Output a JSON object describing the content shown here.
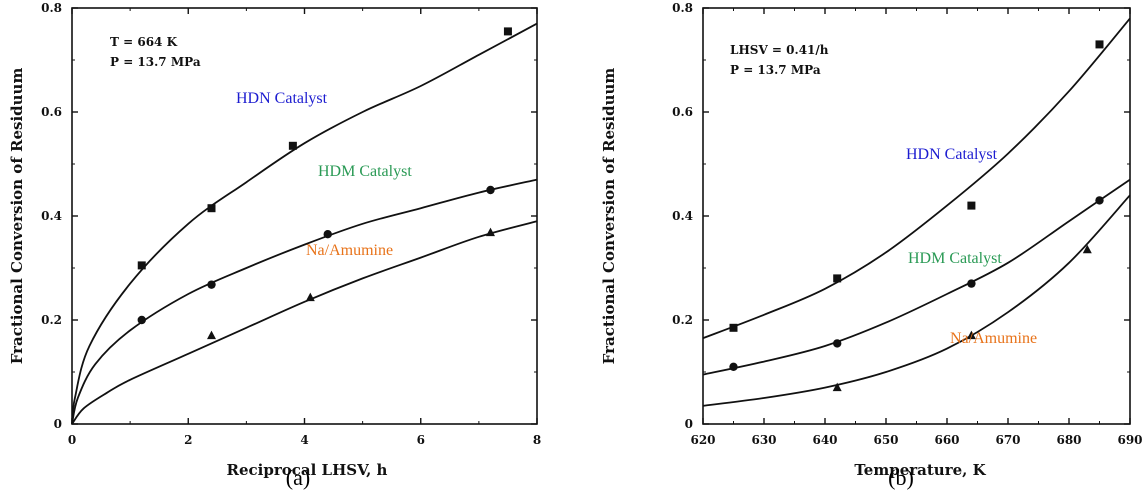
{
  "chart_data": [
    {
      "type": "scatter",
      "panel_label": "(a)",
      "xlabel": "Reciprocal LHSV, h",
      "ylabel": "Fractional Conversion of Residuum",
      "xlim": [
        0,
        8
      ],
      "ylim": [
        0,
        0.8
      ],
      "xticks": [
        0,
        2,
        4,
        6,
        8
      ],
      "yticks": [
        0,
        0.2,
        0.4,
        0.6,
        0.8
      ],
      "xtick_labels": [
        "0",
        "2",
        "4",
        "6",
        "8"
      ],
      "ytick_labels": [
        "0",
        "0.2",
        "0.4",
        "0.6",
        "0.8"
      ],
      "conditions": [
        "T = 664 K",
        "P = 13.7 MPa"
      ],
      "grid": false,
      "series": [
        {
          "name": "HDN Catalyst",
          "color": "#1c1cd0",
          "marker": "square",
          "x": [
            1.2,
            2.4,
            3.8,
            7.5
          ],
          "y": [
            0.305,
            0.415,
            0.535,
            0.755
          ],
          "curve_x": [
            0,
            0.05,
            0.3,
            1,
            2,
            3,
            4,
            5,
            6,
            7,
            8
          ],
          "curve_y": [
            0,
            0.05,
            0.15,
            0.27,
            0.385,
            0.465,
            0.54,
            0.6,
            0.65,
            0.71,
            0.77
          ]
        },
        {
          "name": "HDM Catalyst",
          "color": "#2a9a55",
          "marker": "circle",
          "x": [
            1.2,
            2.4,
            4.4,
            7.2
          ],
          "y": [
            0.2,
            0.268,
            0.365,
            0.45
          ],
          "curve_x": [
            0,
            0.1,
            0.4,
            1,
            2,
            3,
            4,
            5,
            6,
            7,
            8
          ],
          "curve_y": [
            0,
            0.05,
            0.115,
            0.18,
            0.25,
            0.3,
            0.345,
            0.385,
            0.415,
            0.445,
            0.47
          ]
        },
        {
          "name": "Na/Amumine",
          "color": "#e8731a",
          "marker": "triangle",
          "x": [
            2.4,
            4.1,
            7.2
          ],
          "y": [
            0.17,
            0.243,
            0.368
          ],
          "curve_x": [
            0,
            0.2,
            0.6,
            1,
            2,
            3,
            4,
            5,
            6,
            7,
            8
          ],
          "curve_y": [
            0,
            0.03,
            0.06,
            0.085,
            0.135,
            0.185,
            0.235,
            0.28,
            0.32,
            0.36,
            0.39
          ]
        }
      ]
    },
    {
      "type": "scatter",
      "panel_label": "(b)",
      "xlabel": "Temperature, K",
      "ylabel": "Fractional Conversion of Residuum",
      "xlim": [
        620,
        690
      ],
      "ylim": [
        0,
        0.8
      ],
      "xticks": [
        620,
        630,
        640,
        650,
        660,
        670,
        680,
        690
      ],
      "yticks": [
        0,
        0.2,
        0.4,
        0.6,
        0.8
      ],
      "xtick_labels": [
        "620",
        "630",
        "640",
        "650",
        "660",
        "670",
        "680",
        "690"
      ],
      "ytick_labels": [
        "0",
        "0.2",
        "0.4",
        "0.6",
        "0.8"
      ],
      "conditions": [
        "LHSV = 0.41/h",
        "P = 13.7 MPa"
      ],
      "grid": false,
      "series": [
        {
          "name": "HDN Catalyst",
          "color": "#1c1cd0",
          "marker": "square",
          "x": [
            625,
            642,
            664,
            685
          ],
          "y": [
            0.185,
            0.28,
            0.42,
            0.73
          ],
          "curve_x": [
            620,
            630,
            640,
            650,
            660,
            670,
            680,
            690
          ],
          "curve_y": [
            0.165,
            0.21,
            0.26,
            0.33,
            0.42,
            0.52,
            0.64,
            0.78
          ]
        },
        {
          "name": "HDM Catalyst",
          "color": "#2a9a55",
          "marker": "circle",
          "x": [
            625,
            642,
            664,
            685
          ],
          "y": [
            0.11,
            0.155,
            0.27,
            0.43
          ],
          "curve_x": [
            620,
            630,
            640,
            650,
            660,
            670,
            680,
            690
          ],
          "curve_y": [
            0.095,
            0.12,
            0.15,
            0.195,
            0.25,
            0.31,
            0.39,
            0.47
          ]
        },
        {
          "name": "Na/Amumine",
          "color": "#e8731a",
          "marker": "triangle",
          "x": [
            642,
            664,
            683
          ],
          "y": [
            0.07,
            0.17,
            0.335
          ],
          "curve_x": [
            620,
            630,
            640,
            650,
            660,
            670,
            680,
            690
          ],
          "curve_y": [
            0.035,
            0.05,
            0.07,
            0.1,
            0.145,
            0.215,
            0.31,
            0.44
          ]
        }
      ]
    }
  ]
}
